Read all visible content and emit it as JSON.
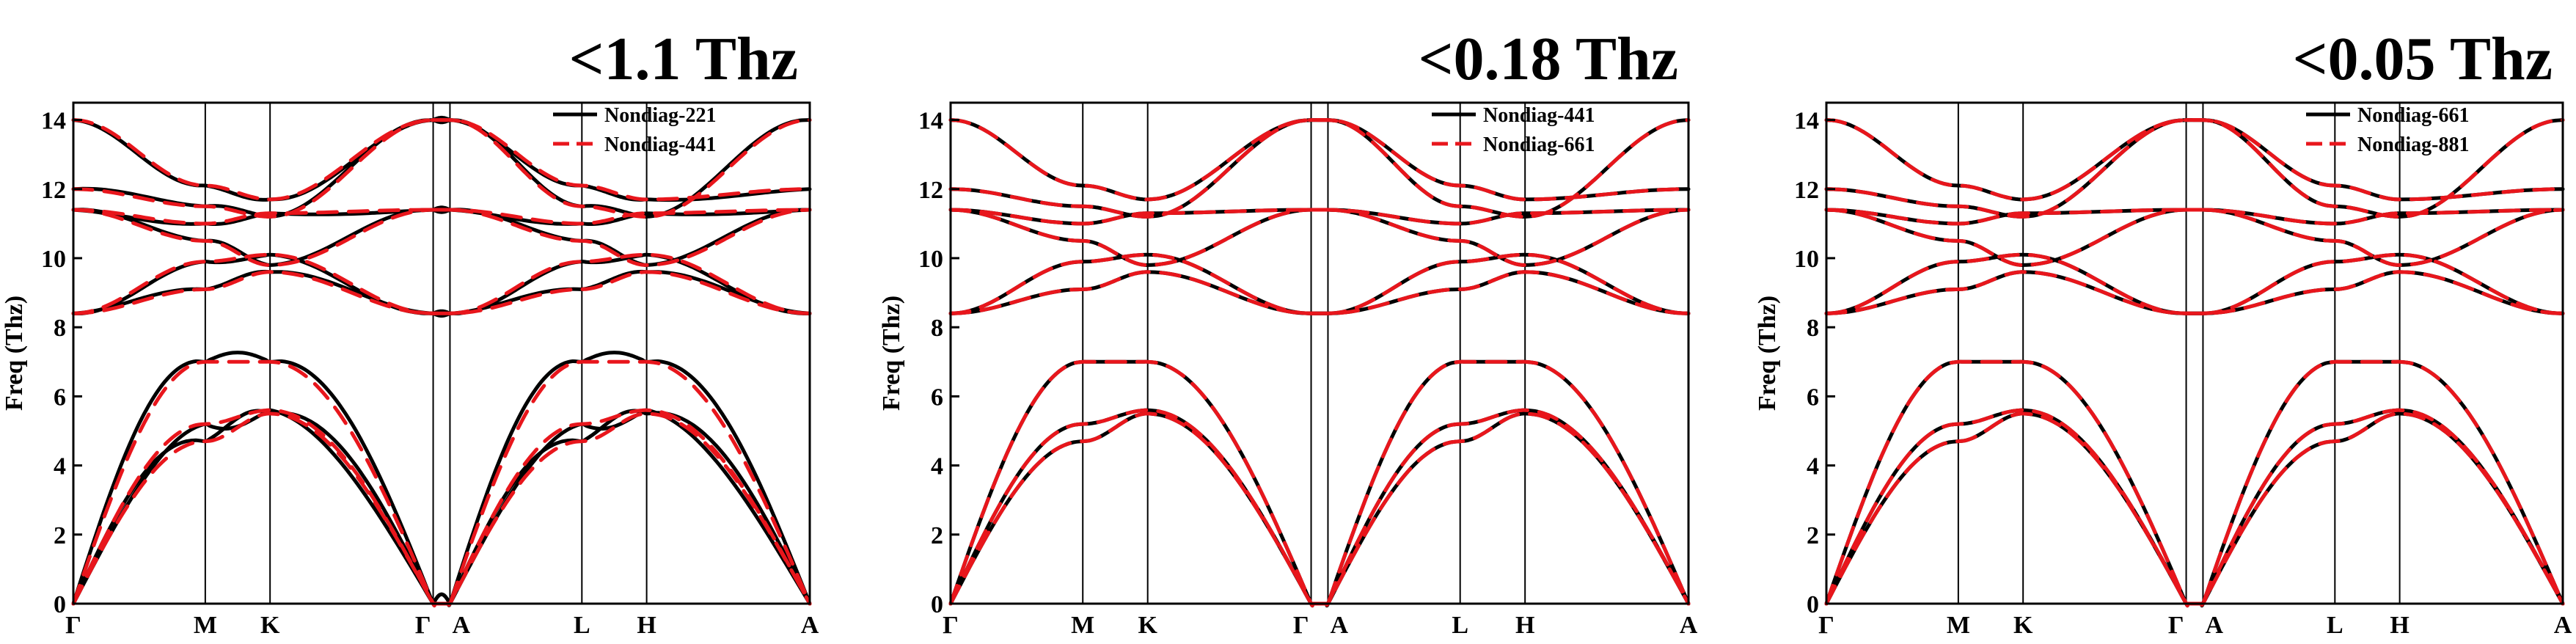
{
  "chart_data": [
    {
      "type": "line",
      "title": "<1.1 Thz",
      "ylabel": "Freq (Thz)",
      "xlabel": "",
      "ylim": [
        0,
        14.5
      ],
      "yticks": [
        0,
        2,
        4,
        6,
        8,
        10,
        12,
        14
      ],
      "grid": false,
      "legend_position": "top-right",
      "k_points": [
        {
          "label": "Γ",
          "pos": 0.0
        },
        {
          "label": "M",
          "pos": 0.55
        },
        {
          "label": "K",
          "pos": 0.82
        },
        {
          "label": "Γ",
          "pos": 1.5
        },
        {
          "label": "A",
          "pos": 1.57
        },
        {
          "label": "L",
          "pos": 2.12
        },
        {
          "label": "H",
          "pos": 2.39
        },
        {
          "label": "A",
          "pos": 3.07
        }
      ],
      "series": [
        {
          "name": "Nondiag-221",
          "color": "#000000",
          "dash": "solid",
          "distortion": 0.45
        },
        {
          "name": "Nondiag-441",
          "color": "#e8161c",
          "dash": "dashed",
          "distortion": 0.0
        }
      ],
      "bands_reference": [
        [
          0,
          4.7,
          5.5,
          0,
          0,
          4.7,
          5.5,
          0
        ],
        [
          0,
          5.2,
          5.6,
          0,
          0,
          5.2,
          5.6,
          0
        ],
        [
          0,
          7.0,
          7.0,
          0,
          0,
          7.0,
          7.0,
          0
        ],
        [
          8.4,
          9.1,
          9.6,
          8.4,
          8.4,
          9.1,
          9.6,
          8.4
        ],
        [
          8.4,
          9.9,
          10.1,
          8.4,
          8.4,
          9.9,
          10.1,
          8.4
        ],
        [
          11.4,
          10.5,
          9.8,
          11.4,
          11.4,
          10.5,
          9.8,
          11.4
        ],
        [
          11.4,
          11.0,
          11.3,
          11.4,
          11.4,
          11.0,
          11.3,
          11.4
        ],
        [
          12.0,
          11.5,
          11.2,
          14.0,
          14.0,
          11.5,
          11.2,
          14.0
        ],
        [
          14.0,
          12.1,
          11.7,
          14.0,
          14.0,
          12.1,
          11.7,
          12.0
        ]
      ]
    },
    {
      "type": "line",
      "title": "<0.18 Thz",
      "ylabel": "Freq (Thz)",
      "xlabel": "",
      "ylim": [
        0,
        14.5
      ],
      "yticks": [
        0,
        2,
        4,
        6,
        8,
        10,
        12,
        14
      ],
      "grid": false,
      "legend_position": "top-right",
      "k_points": [
        {
          "label": "Γ",
          "pos": 0.0
        },
        {
          "label": "M",
          "pos": 0.55
        },
        {
          "label": "K",
          "pos": 0.82
        },
        {
          "label": "Γ",
          "pos": 1.5
        },
        {
          "label": "A",
          "pos": 1.57
        },
        {
          "label": "L",
          "pos": 2.12
        },
        {
          "label": "H",
          "pos": 2.39
        },
        {
          "label": "A",
          "pos": 3.07
        }
      ],
      "series": [
        {
          "name": "Nondiag-441",
          "color": "#000000",
          "dash": "solid",
          "distortion": 0.0
        },
        {
          "name": "Nondiag-661",
          "color": "#e8161c",
          "dash": "dashed",
          "distortion": 0.0
        }
      ],
      "bands_reference": [
        [
          0,
          4.7,
          5.5,
          0,
          0,
          4.7,
          5.5,
          0
        ],
        [
          0,
          5.2,
          5.6,
          0,
          0,
          5.2,
          5.6,
          0
        ],
        [
          0,
          7.0,
          7.0,
          0,
          0,
          7.0,
          7.0,
          0
        ],
        [
          8.4,
          9.1,
          9.6,
          8.4,
          8.4,
          9.1,
          9.6,
          8.4
        ],
        [
          8.4,
          9.9,
          10.1,
          8.4,
          8.4,
          9.9,
          10.1,
          8.4
        ],
        [
          11.4,
          10.5,
          9.8,
          11.4,
          11.4,
          10.5,
          9.8,
          11.4
        ],
        [
          11.4,
          11.0,
          11.3,
          11.4,
          11.4,
          11.0,
          11.3,
          11.4
        ],
        [
          12.0,
          11.5,
          11.2,
          14.0,
          14.0,
          11.5,
          11.2,
          14.0
        ],
        [
          14.0,
          12.1,
          11.7,
          14.0,
          14.0,
          12.1,
          11.7,
          12.0
        ]
      ]
    },
    {
      "type": "line",
      "title": "<0.05 Thz",
      "ylabel": "Freq (Thz)",
      "xlabel": "",
      "ylim": [
        0,
        14.5
      ],
      "yticks": [
        0,
        2,
        4,
        6,
        8,
        10,
        12,
        14
      ],
      "grid": false,
      "legend_position": "top-right",
      "k_points": [
        {
          "label": "Γ",
          "pos": 0.0
        },
        {
          "label": "M",
          "pos": 0.55
        },
        {
          "label": "K",
          "pos": 0.82
        },
        {
          "label": "Γ",
          "pos": 1.5
        },
        {
          "label": "A",
          "pos": 1.57
        },
        {
          "label": "L",
          "pos": 2.12
        },
        {
          "label": "H",
          "pos": 2.39
        },
        {
          "label": "A",
          "pos": 3.07
        }
      ],
      "series": [
        {
          "name": "Nondiag-661",
          "color": "#000000",
          "dash": "solid",
          "distortion": 0.0
        },
        {
          "name": "Nondiag-881",
          "color": "#e8161c",
          "dash": "dashed",
          "distortion": 0.0
        }
      ],
      "bands_reference": [
        [
          0,
          4.7,
          5.5,
          0,
          0,
          4.7,
          5.5,
          0
        ],
        [
          0,
          5.2,
          5.6,
          0,
          0,
          5.2,
          5.6,
          0
        ],
        [
          0,
          7.0,
          7.0,
          0,
          0,
          7.0,
          7.0,
          0
        ],
        [
          8.4,
          9.1,
          9.6,
          8.4,
          8.4,
          9.1,
          9.6,
          8.4
        ],
        [
          8.4,
          9.9,
          10.1,
          8.4,
          8.4,
          9.9,
          10.1,
          8.4
        ],
        [
          11.4,
          10.5,
          9.8,
          11.4,
          11.4,
          10.5,
          9.8,
          11.4
        ],
        [
          11.4,
          11.0,
          11.3,
          11.4,
          11.4,
          11.0,
          11.3,
          11.4
        ],
        [
          12.0,
          11.5,
          11.2,
          14.0,
          14.0,
          11.5,
          11.2,
          14.0
        ],
        [
          14.0,
          12.1,
          11.7,
          14.0,
          14.0,
          12.1,
          11.7,
          12.0
        ]
      ]
    }
  ]
}
